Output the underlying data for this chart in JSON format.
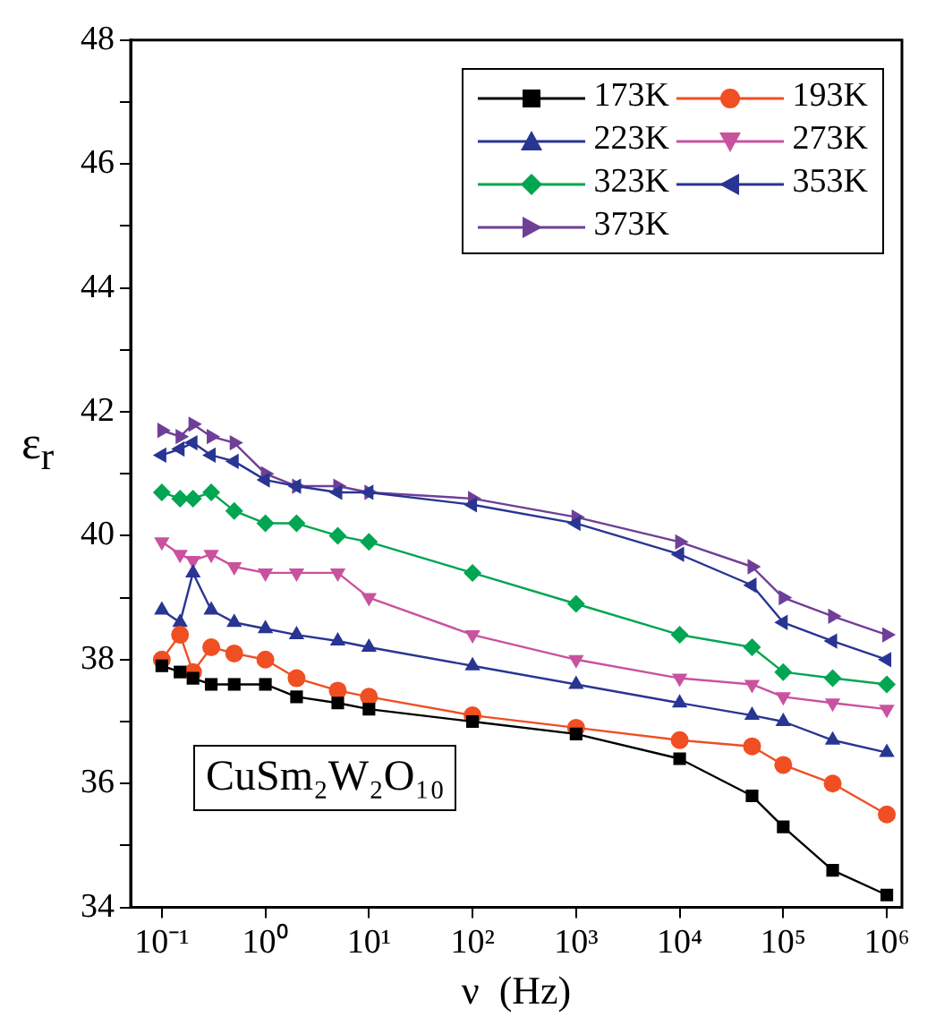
{
  "chart_data": {
    "type": "line",
    "xlabel": "ν  (Hz)",
    "ylabel": "ε$_{r}$",
    "log": "x",
    "grid": false,
    "legend": "top right",
    "line_style": "solid",
    "x": [
      0.1,
      0.15,
      0.2,
      0.3,
      0.5,
      1,
      2,
      5,
      10,
      100,
      1000,
      10000,
      50000,
      100000,
      300000,
      1000000
    ],
    "xlim": [
      0.05,
      1400000
    ],
    "xticks": [
      {
        "value": 0.1,
        "label": "10⁻¹"
      },
      {
        "value": 1,
        "label": "10⁰"
      },
      {
        "value": 10,
        "label": "10¹"
      },
      {
        "value": 100,
        "label": "10²"
      },
      {
        "value": 1000,
        "label": "10³"
      },
      {
        "value": 10000,
        "label": "10⁴"
      },
      {
        "value": 100000,
        "label": "10⁵"
      },
      {
        "value": 1000000,
        "label": "10⁶"
      }
    ],
    "ylim": [
      34,
      48
    ],
    "yticks": [
      34,
      {
        "value": 35,
        "label": null
      },
      36,
      {
        "value": 37,
        "label": null
      },
      38,
      {
        "value": 39,
        "label": null
      },
      40,
      {
        "value": 41,
        "label": null
      },
      42,
      {
        "value": 43,
        "label": null
      },
      44,
      {
        "value": 45,
        "label": null
      },
      46,
      {
        "value": 47,
        "label": null
      },
      48
    ],
    "series": [
      {
        "name": "173K",
        "color": "#000000",
        "marker": "square",
        "values": [
          37.9,
          37.8,
          37.7,
          37.6,
          37.6,
          37.6,
          37.4,
          37.3,
          37.2,
          37.0,
          36.8,
          36.4,
          35.8,
          35.3,
          34.6,
          34.2
        ]
      },
      {
        "name": "193K",
        "color": "#f04e23",
        "marker": "circle",
        "values": [
          38.0,
          38.4,
          37.8,
          38.2,
          38.1,
          38.0,
          37.7,
          37.5,
          37.4,
          37.1,
          36.9,
          36.7,
          36.6,
          36.3,
          36.0,
          35.5
        ]
      },
      {
        "name": "223K",
        "color": "#283593",
        "marker": "triangle",
        "values": [
          38.8,
          38.6,
          39.4,
          38.8,
          38.6,
          38.5,
          38.4,
          38.3,
          38.2,
          37.9,
          37.6,
          37.3,
          37.1,
          37.0,
          36.7,
          36.5
        ]
      },
      {
        "name": "273K",
        "color": "#c9529f",
        "marker": "triangle-down",
        "values": [
          39.9,
          39.7,
          39.6,
          39.7,
          39.5,
          39.4,
          39.4,
          39.4,
          39.0,
          38.4,
          38.0,
          37.7,
          37.6,
          37.4,
          37.3,
          37.2
        ]
      },
      {
        "name": "323K",
        "color": "#00a651",
        "marker": "diamond",
        "values": [
          40.7,
          40.6,
          40.6,
          40.7,
          40.4,
          40.2,
          40.2,
          40.0,
          39.9,
          39.4,
          38.9,
          38.4,
          38.2,
          37.8,
          37.7,
          37.6
        ]
      },
      {
        "name": "353K",
        "color": "#283593",
        "marker": "triangle-left",
        "values": [
          41.3,
          41.4,
          41.5,
          41.3,
          41.2,
          40.9,
          40.8,
          40.7,
          40.7,
          40.5,
          40.2,
          39.7,
          39.2,
          38.6,
          38.3,
          38.0
        ]
      },
      {
        "name": "373K",
        "color": "#6f3f98",
        "marker": "triangle-right",
        "values": [
          41.7,
          41.6,
          41.8,
          41.6,
          41.5,
          41.0,
          40.8,
          40.8,
          40.7,
          40.6,
          40.3,
          39.9,
          39.5,
          39.0,
          38.7,
          38.4
        ]
      }
    ],
    "annotations": [
      "CuSm₂W₂O₁₀"
    ]
  }
}
